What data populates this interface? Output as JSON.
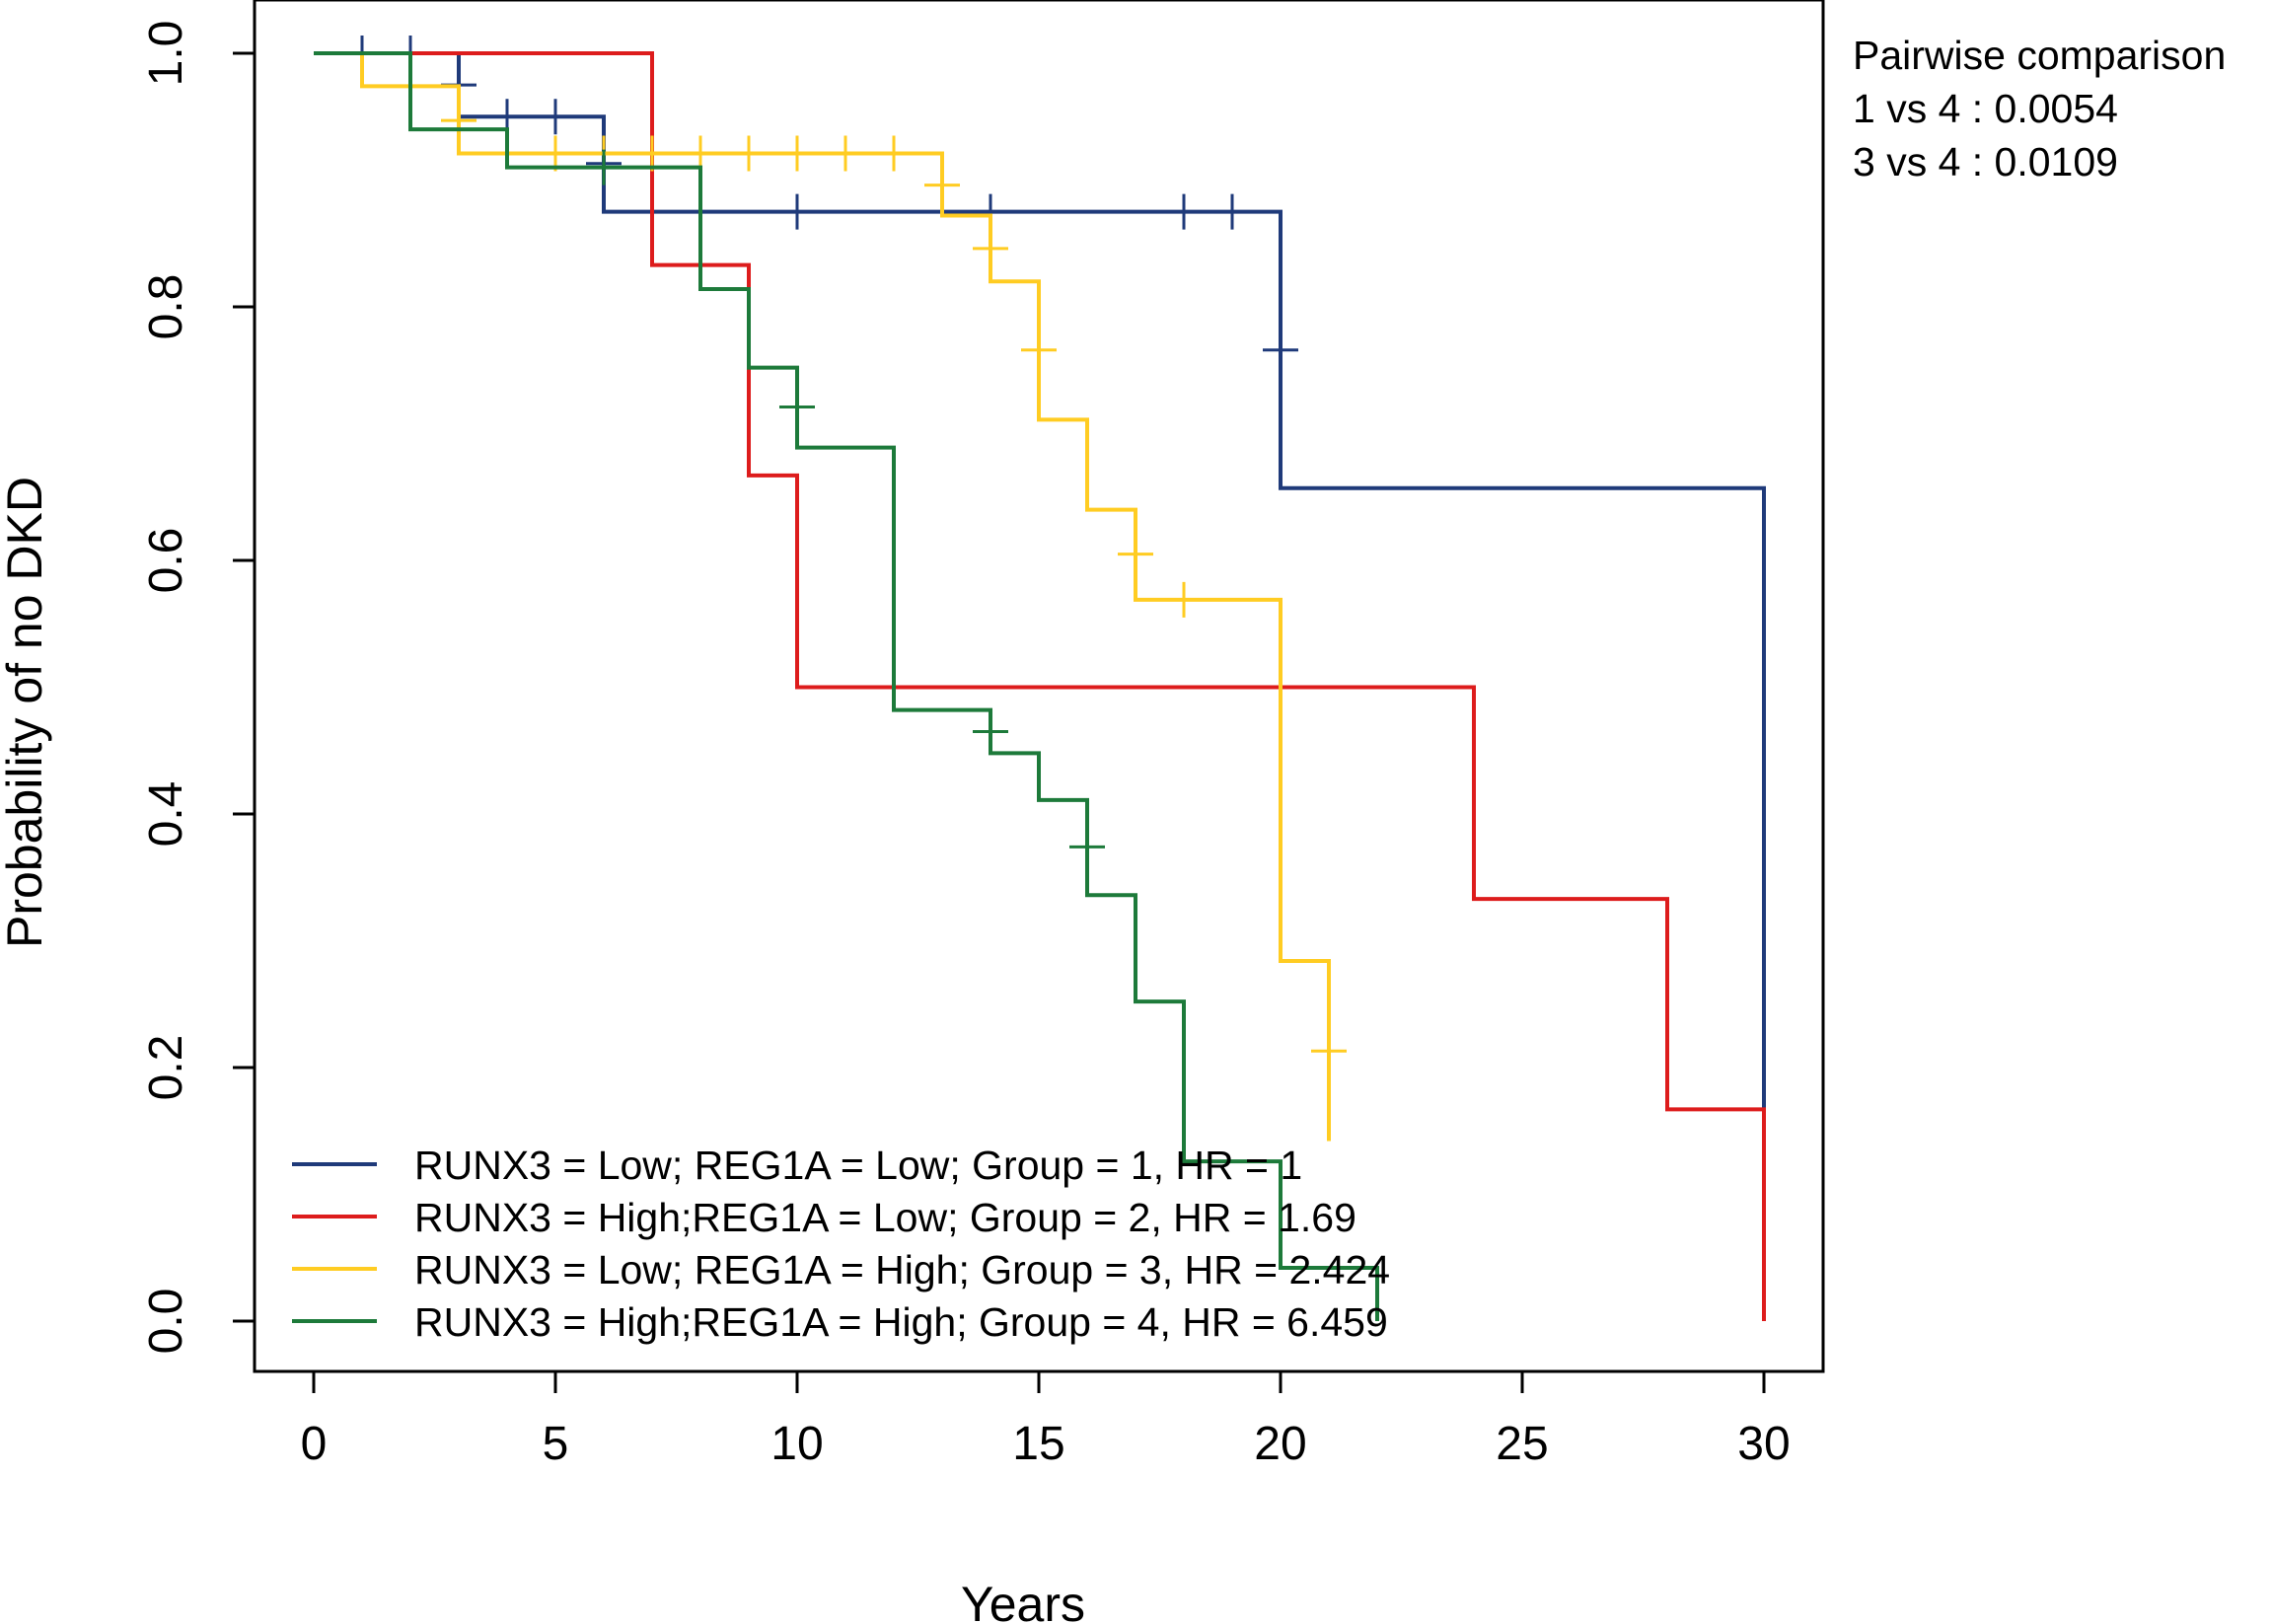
{
  "chart_data": {
    "type": "line",
    "subtype": "kaplan-meier step",
    "title": "",
    "xlabel": "Years",
    "ylabel": "Probability of no DKD",
    "xlim": [
      0,
      30
    ],
    "ylim": [
      0,
      1
    ],
    "x_ticks": [
      0,
      5,
      10,
      15,
      20,
      25,
      30
    ],
    "y_ticks": [
      0.0,
      0.2,
      0.4,
      0.6,
      0.8,
      1.0
    ],
    "x_tick_labels": [
      "0",
      "5",
      "10",
      "15",
      "20",
      "25",
      "30"
    ],
    "y_tick_labels": [
      "0.0",
      "0.2",
      "0.4",
      "0.6",
      "0.8",
      "1.0"
    ],
    "grid": false,
    "legend_position": "bottom-left",
    "annotation": {
      "title": "Pairwise comparison",
      "lines": [
        "1 vs 4 : 0.0054",
        "3 vs 4 : 0.0109"
      ]
    },
    "series": [
      {
        "name": "RUNX3 = Low; REG1A = Low;  Group = 1, HR = 1",
        "color": "#1f3a7a",
        "steps": [
          [
            0,
            1.0
          ],
          [
            3,
            0.95
          ],
          [
            6,
            0.875
          ],
          [
            20,
            0.657
          ],
          [
            30,
            0.15
          ]
        ],
        "end_x": 30,
        "censor": [
          [
            1,
            1.0
          ],
          [
            2,
            1.0
          ],
          [
            3,
            0.975
          ],
          [
            4,
            0.95
          ],
          [
            5,
            0.95
          ],
          [
            6,
            0.913
          ],
          [
            10,
            0.875
          ],
          [
            14,
            0.875
          ],
          [
            18,
            0.875
          ],
          [
            19,
            0.875
          ],
          [
            20,
            0.766
          ]
        ]
      },
      {
        "name": "RUNX3 = High;REG1A = Low;  Group = 2, HR = 1.69",
        "color": "#dd1c1c",
        "steps": [
          [
            0,
            1.0
          ],
          [
            7,
            0.833
          ],
          [
            9,
            0.667
          ],
          [
            10,
            0.5
          ],
          [
            24,
            0.333
          ],
          [
            28,
            0.167
          ],
          [
            30,
            0.0
          ]
        ],
        "end_x": 30,
        "censor": []
      },
      {
        "name": "RUNX3 = Low; REG1A = High; Group = 3, HR = 2.424",
        "color": "#ffcc22",
        "steps": [
          [
            0,
            1.0
          ],
          [
            1,
            0.974
          ],
          [
            3,
            0.921
          ],
          [
            13,
            0.872
          ],
          [
            14,
            0.82
          ],
          [
            15,
            0.711
          ],
          [
            16,
            0.64
          ],
          [
            17,
            0.569
          ],
          [
            20,
            0.284
          ],
          [
            21,
            0.142
          ]
        ],
        "end_x": 21,
        "censor": [
          [
            3,
            0.947
          ],
          [
            5,
            0.921
          ],
          [
            6,
            0.921
          ],
          [
            7,
            0.921
          ],
          [
            8,
            0.921
          ],
          [
            9,
            0.921
          ],
          [
            10,
            0.921
          ],
          [
            11,
            0.921
          ],
          [
            12,
            0.921
          ],
          [
            13,
            0.896
          ],
          [
            14,
            0.846
          ],
          [
            15,
            0.766
          ],
          [
            17,
            0.605
          ],
          [
            18,
            0.569
          ],
          [
            21,
            0.213
          ]
        ]
      },
      {
        "name": "RUNX3 = High;REG1A = High; Group = 4, HR = 6.459",
        "color": "#1d7a3a",
        "steps": [
          [
            0,
            1.0
          ],
          [
            2,
            0.94
          ],
          [
            4,
            0.91
          ],
          [
            8,
            0.814
          ],
          [
            9,
            0.752
          ],
          [
            10,
            0.689
          ],
          [
            12,
            0.482
          ],
          [
            14,
            0.448
          ],
          [
            15,
            0.411
          ],
          [
            16,
            0.336
          ],
          [
            17,
            0.252
          ],
          [
            18,
            0.126
          ],
          [
            20,
            0.042
          ],
          [
            22,
            0.0
          ]
        ],
        "end_x": 22,
        "censor": [
          [
            6,
            0.91
          ],
          [
            10,
            0.721
          ],
          [
            14,
            0.465
          ],
          [
            16,
            0.374
          ]
        ]
      }
    ]
  }
}
